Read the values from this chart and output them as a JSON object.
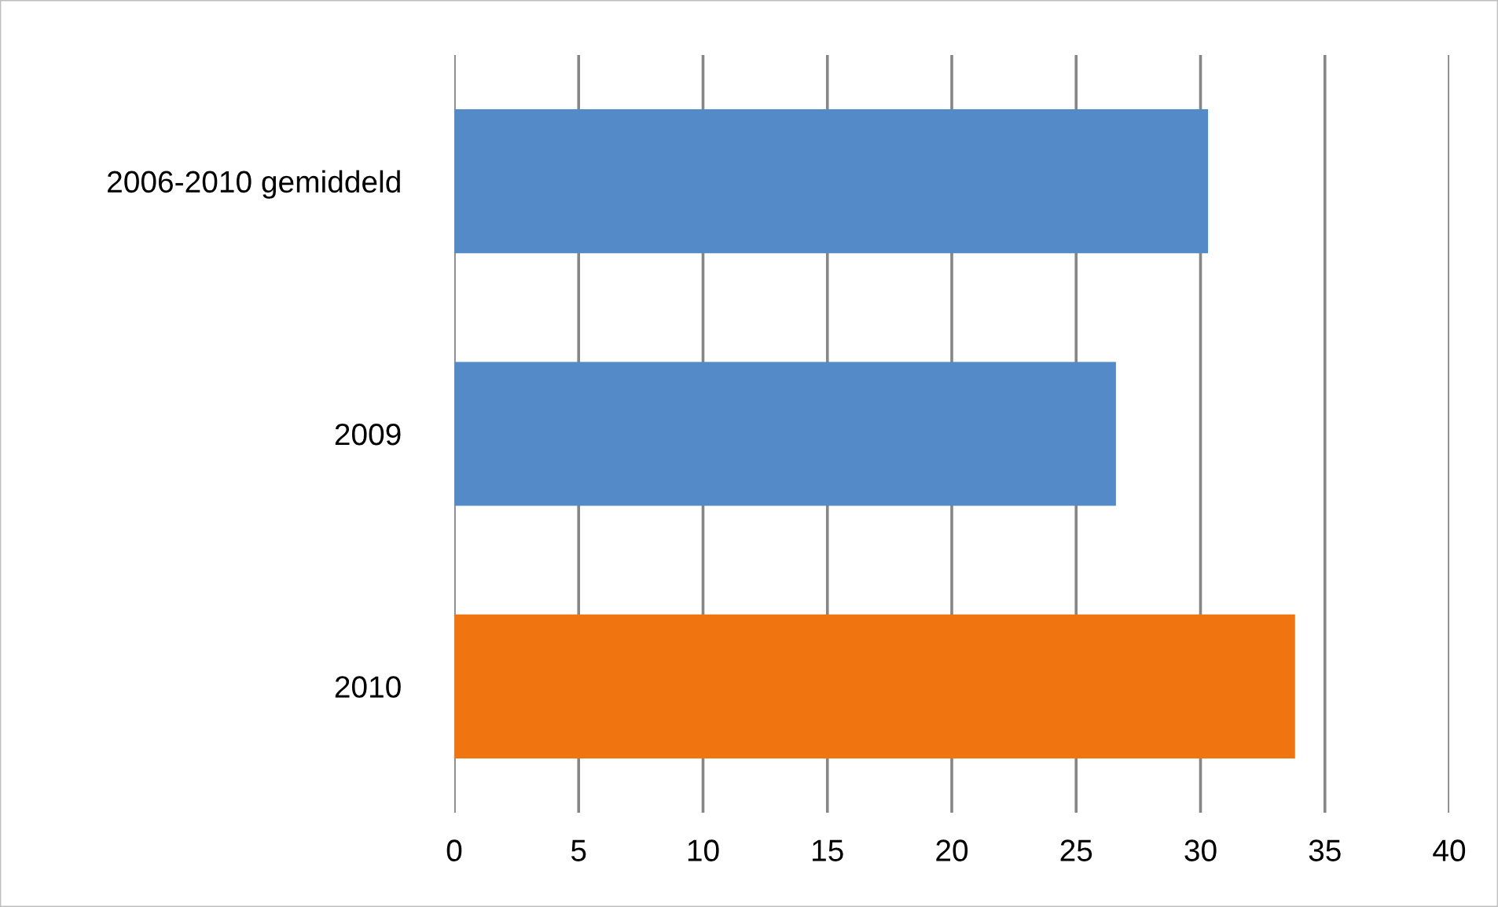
{
  "chart_data": {
    "type": "bar",
    "orientation": "horizontal",
    "categories": [
      "2006-2010 gemiddeld",
      "2009",
      "2010"
    ],
    "values": [
      30.3,
      26.6,
      33.8
    ],
    "colors": [
      "#558ac8",
      "#558ac8",
      "#f07510"
    ],
    "xlim": [
      0,
      40
    ],
    "xticks": [
      0,
      5,
      10,
      15,
      20,
      25,
      30,
      35,
      40
    ],
    "grid": "x",
    "legend": false
  }
}
